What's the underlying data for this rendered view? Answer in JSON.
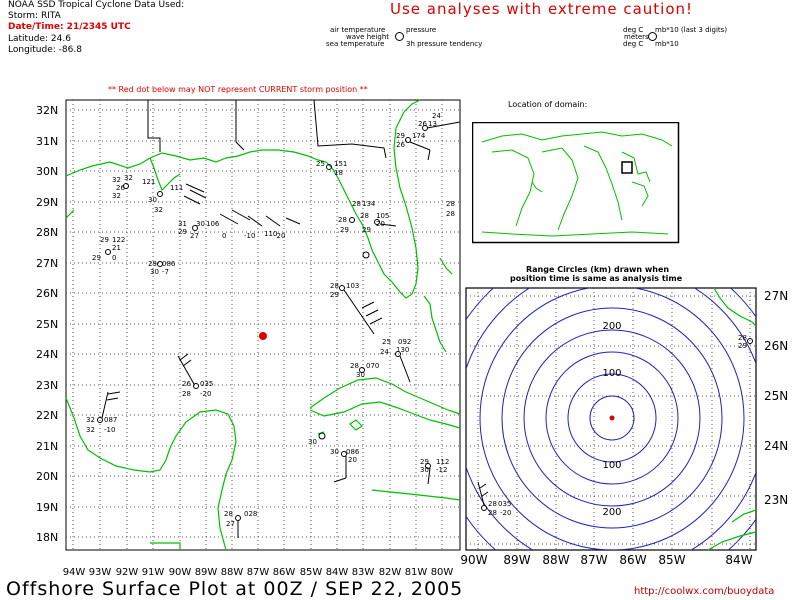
{
  "header": {
    "source_line": "NOAA SSD Tropical Cyclone Data Used:",
    "storm_line": "Storm: RITA",
    "datetime_line": "Date/Time: 21/2345 UTC",
    "latitude_line": "Latitude: 24.6",
    "longitude_line": "Longitude: -86.8"
  },
  "warning": "Use analyses with extreme caution!",
  "legend": {
    "air_temp": "air temperature",
    "pressure": "pressure",
    "wave_height": "wave height",
    "sea_temp": "sea temperature",
    "tendency": "3h pressure tendency",
    "right_deg_c_1": "deg C",
    "right_mb_1": "mb*10 (last 3 digits)",
    "right_meters": "meters",
    "right_deg_c_2": "deg C",
    "right_mb_2": "mb*10"
  },
  "notice": "** Red dot below may NOT represent CURRENT storm position **",
  "main_map": {
    "lat_labels": [
      "32N",
      "31N",
      "30N",
      "29N",
      "28N",
      "27N",
      "26N",
      "25N",
      "24N",
      "23N",
      "22N",
      "21N",
      "20N",
      "19N",
      "18N"
    ],
    "lon_labels": [
      "94W",
      "93W",
      "92W",
      "91W",
      "90W",
      "89W",
      "88W",
      "87W",
      "86W",
      "85W",
      "84W",
      "83W",
      "82W",
      "81W",
      "80W"
    ],
    "storm_dot_color": "#e00000",
    "coast_color": "#00c000",
    "stations": [
      {
        "a": "24",
        "b": "",
        "c": ""
      },
      {
        "a": "26",
        "b": "13",
        "c": ""
      },
      {
        "a": "29",
        "b": "174",
        "c": "26"
      },
      {
        "a": "25",
        "b": "151",
        "c": "18"
      },
      {
        "a": "32",
        "b": "121",
        "c": "32"
      },
      {
        "a": "30",
        "b": "111",
        "c": "32"
      },
      {
        "a": "28",
        "b": "134",
        "c": "29"
      },
      {
        "a": "28",
        "b": "105",
        "c": "29"
      },
      {
        "a": "31",
        "b": "",
        "c": "29"
      },
      {
        "a": "29",
        "b": "122",
        "c": "29"
      },
      {
        "a": "29",
        "b": "086",
        "c": "30"
      },
      {
        "a": "28",
        "b": "103",
        "c": "29"
      },
      {
        "a": "25",
        "b": "092",
        "c": "24"
      },
      {
        "a": "28",
        "b": "070",
        "c": "30"
      },
      {
        "a": "26",
        "b": "035",
        "c": "28"
      },
      {
        "a": "32",
        "b": "087",
        "c": "32"
      },
      {
        "a": "30",
        "b": "",
        "c": ""
      },
      {
        "a": "30",
        "b": "086",
        "c": "20"
      },
      {
        "a": "29",
        "b": "112",
        "c": "30"
      },
      {
        "a": "28",
        "b": "028",
        "c": "27"
      },
      {
        "a": "110",
        "b": "",
        "c": ""
      },
      {
        "a": "28",
        "b": "",
        "c": "28"
      }
    ],
    "station_minor": [
      "-10",
      "-20",
      "-20",
      "-7",
      "-12",
      "-20",
      "-30",
      "+6",
      "-1",
      "-1",
      "-4",
      "-10",
      "-12"
    ]
  },
  "inset": {
    "title": "Location of domain:"
  },
  "range_panel": {
    "title_line1": "Range Circles (km) drawn when",
    "title_line2": "position time is same as analysis time",
    "circle_labels": [
      "200",
      "100",
      "100",
      "200"
    ],
    "lat_labels": [
      "27N",
      "26N",
      "25N",
      "24N",
      "23N"
    ],
    "lon_labels": [
      "90W",
      "89W",
      "88W",
      "87W",
      "86W",
      "85W",
      "84W"
    ],
    "circle_color": "#2020c0",
    "stations": [
      {
        "a": "28",
        "b": "035",
        "c": "28"
      },
      {
        "a": "28",
        "b": "",
        "c": "29"
      }
    ],
    "station_minor": [
      "-20"
    ]
  },
  "footer": {
    "title": "Offshore Surface Plot at 00Z / SEP 22, 2005",
    "url": "http://coolwx.com/buoydata"
  }
}
